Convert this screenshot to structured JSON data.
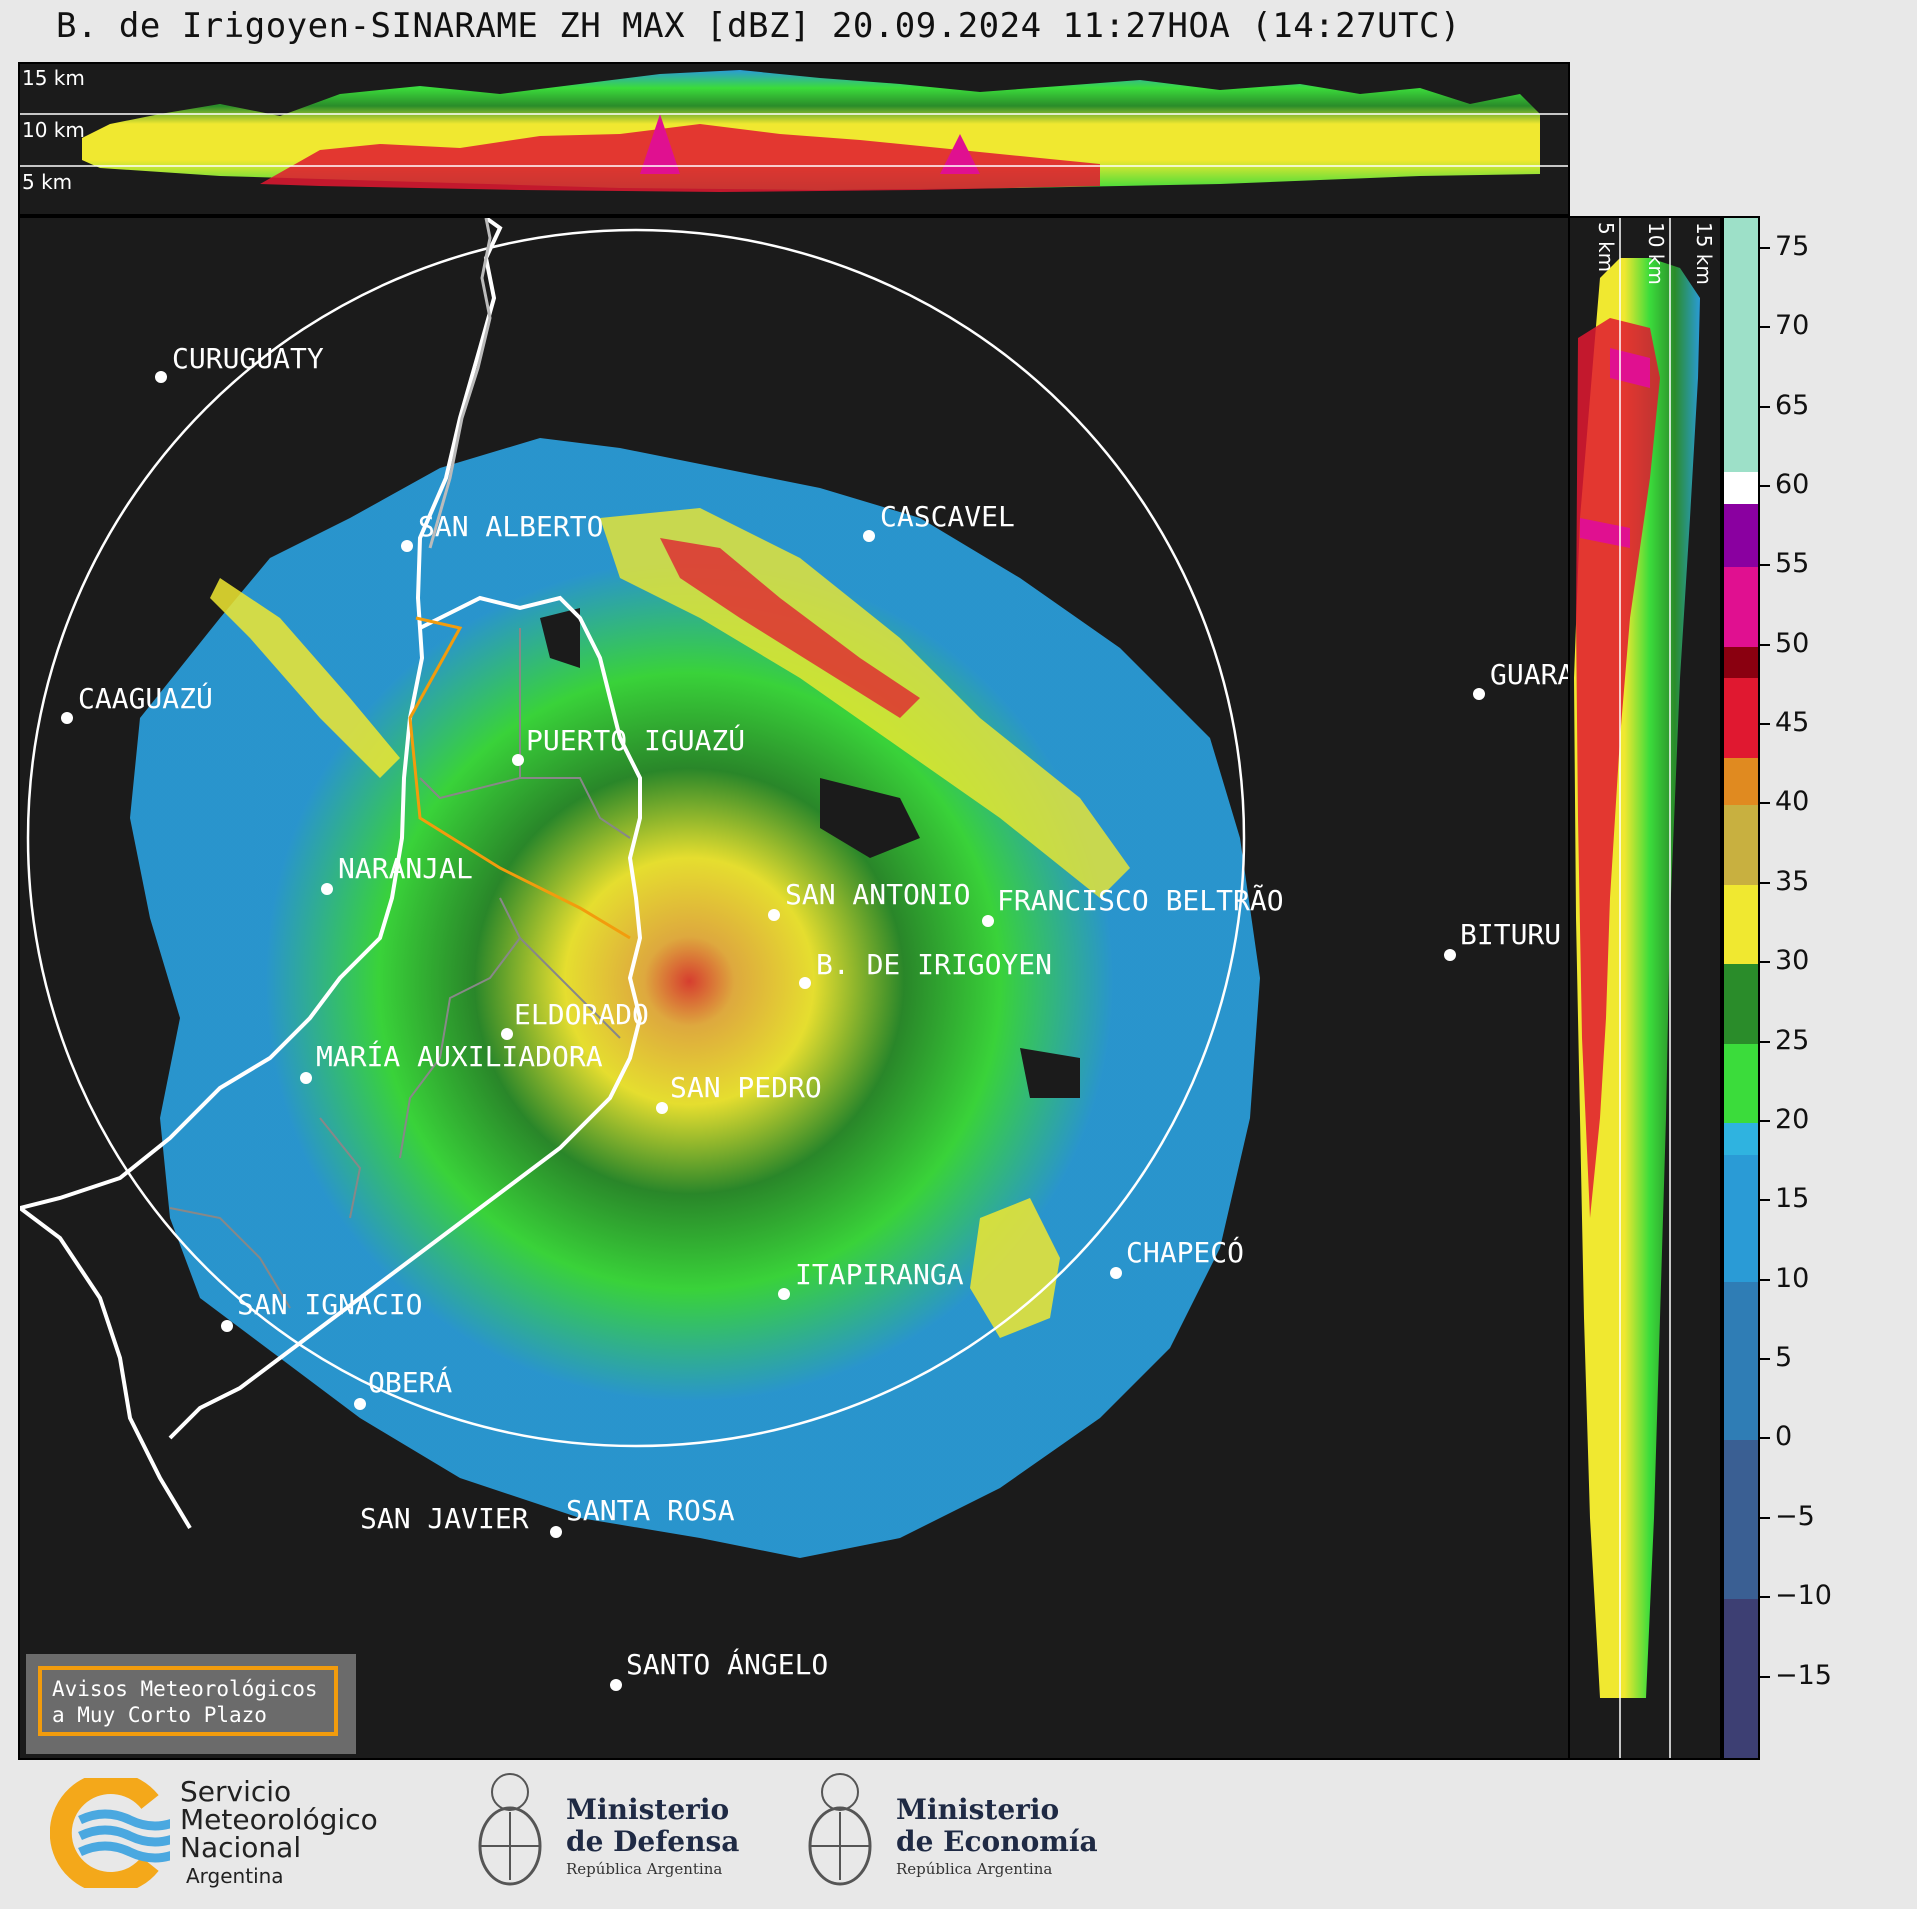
{
  "title": "B. de Irigoyen-SINARAME ZH MAX [dBZ] 20.09.2024 11:27HOA (14:27UTC)",
  "top_panel": {
    "altitude_labels": [
      "15 km",
      "10 km",
      "5 km"
    ]
  },
  "side_panel": {
    "altitude_labels": [
      "5 km",
      "10 km",
      "15 km"
    ]
  },
  "cities": [
    {
      "name": "CURUGUATY",
      "label": "CURUGUATY"
    },
    {
      "name": "SAN ALBERTO",
      "label": "SAN ALBERTO"
    },
    {
      "name": "CASCAVEL",
      "label": "CASCAVEL"
    },
    {
      "name": "CAAGUAZU",
      "label": "CAAGUAZÚ"
    },
    {
      "name": "GUARAPUAVA",
      "label": "GUARA"
    },
    {
      "name": "PUERTO IGUAZU",
      "label": "PUERTO IGUAZÚ"
    },
    {
      "name": "NARANJAL",
      "label": "NARANJAL"
    },
    {
      "name": "SAN ANTONIO",
      "label": "SAN ANTONIO"
    },
    {
      "name": "FRANCISCO BELTRAO",
      "label": "FRANCISCO BELTRÃO"
    },
    {
      "name": "BITURUNA",
      "label": "BITURU"
    },
    {
      "name": "B DE IRIGOYEN",
      "label": "B. DE IRIGOYEN"
    },
    {
      "name": "ELDORADO",
      "label": "ELDORADO"
    },
    {
      "name": "MARIA AUXILIADORA",
      "label": "MARÍA AUXILIADORA"
    },
    {
      "name": "SAN PEDRO",
      "label": "SAN PEDRO"
    },
    {
      "name": "CHAPECO",
      "label": "CHAPECÓ"
    },
    {
      "name": "ITAPIRANGA",
      "label": "ITAPIRANGA"
    },
    {
      "name": "SAN IGNACIO",
      "label": "SAN IGNACIO"
    },
    {
      "name": "OBERA",
      "label": "OBERÁ"
    },
    {
      "name": "SAN JAVIER",
      "label": "SAN JAVIER"
    },
    {
      "name": "SANTA ROSA",
      "label": "SANTA ROSA"
    },
    {
      "name": "SANTO ANGELO",
      "label": "SANTO ÁNGELO"
    }
  ],
  "colorbar": {
    "unit": "dBZ",
    "ticks": [
      "75",
      "70",
      "65",
      "60",
      "55",
      "50",
      "45",
      "40",
      "35",
      "30",
      "25",
      "20",
      "15",
      "10",
      "5",
      "0",
      "−5",
      "−10",
      "−15"
    ],
    "range": [
      -20,
      77
    ],
    "colors": {
      "ranges": [
        {
          "from": -20,
          "to": -10,
          "color": "#3d3f73"
        },
        {
          "from": -10,
          "to": 0,
          "color": "#3a5f93"
        },
        {
          "from": 0,
          "to": 10,
          "color": "#2f7db5"
        },
        {
          "from": 10,
          "to": 18,
          "color": "#2a9bd6"
        },
        {
          "from": 18,
          "to": 20,
          "color": "#2fb3e0"
        },
        {
          "from": 20,
          "to": 25,
          "color": "#3bdc3b"
        },
        {
          "from": 25,
          "to": 30,
          "color": "#2a8c2a"
        },
        {
          "from": 30,
          "to": 35,
          "color": "#f0e830"
        },
        {
          "from": 35,
          "to": 40,
          "color": "#c8b040"
        },
        {
          "from": 40,
          "to": 43,
          "color": "#e08a20"
        },
        {
          "from": 43,
          "to": 48,
          "color": "#e01830"
        },
        {
          "from": 48,
          "to": 50,
          "color": "#8a0010"
        },
        {
          "from": 50,
          "to": 55,
          "color": "#e01090"
        },
        {
          "from": 55,
          "to": 59,
          "color": "#8a00a0"
        },
        {
          "from": 59,
          "to": 61,
          "color": "#ffffff"
        },
        {
          "from": 61,
          "to": 77,
          "color": "#9de0c8"
        }
      ]
    }
  },
  "avisos": {
    "line1": "Avisos Meteorológicos",
    "line2": "a Muy Corto Plazo"
  },
  "footer": {
    "smn_line1": "Servicio",
    "smn_line2": "Meteorológico",
    "smn_line3": "Nacional",
    "smn_line4": "Argentina",
    "defensa_line1": "Ministerio",
    "defensa_line2": "de Defensa",
    "defensa_sub": "República Argentina",
    "economia_line1": "Ministerio",
    "economia_line2": "de Economía",
    "economia_sub": "República Argentina"
  }
}
